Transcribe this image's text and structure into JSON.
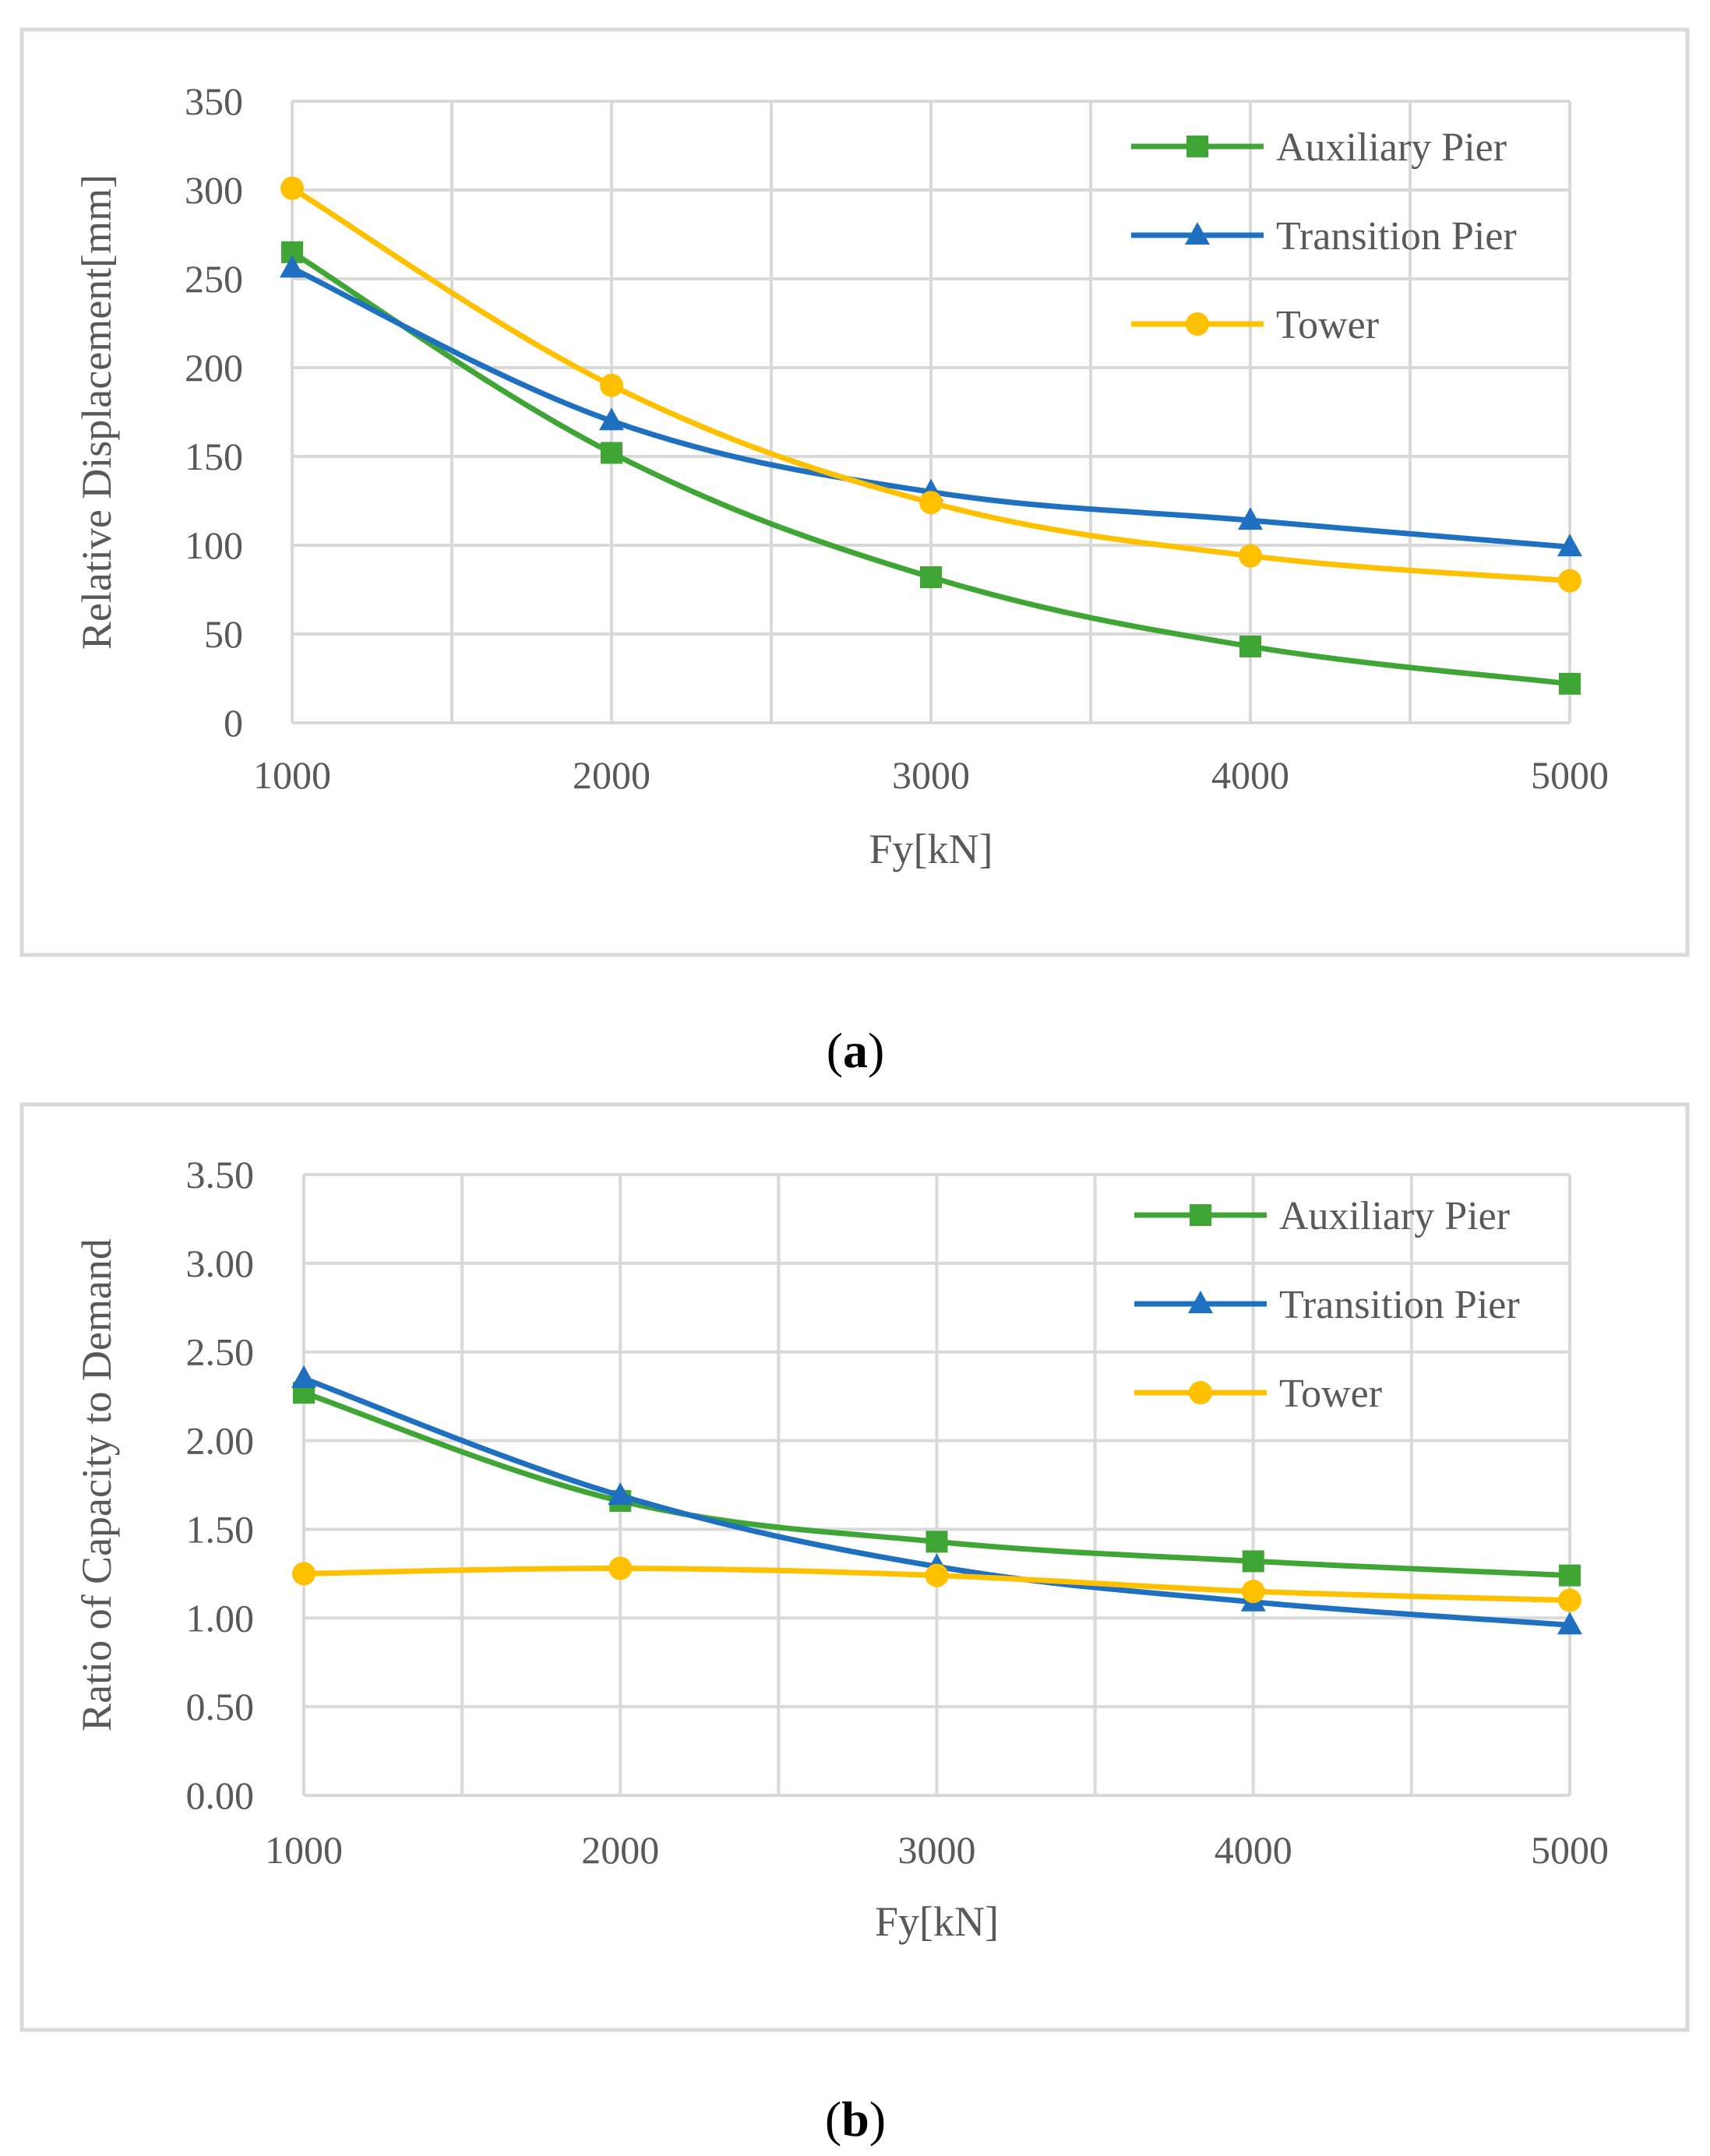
{
  "chart_data": [
    {
      "type": "line",
      "panel_label": "a",
      "x": [
        1000,
        2000,
        3000,
        4000,
        5000
      ],
      "xlabel": "Fy[kN]",
      "ylabel": "Relative Displacement[mm]",
      "xlim": [
        1000,
        5000
      ],
      "ylim": [
        0,
        350
      ],
      "x_ticks": [
        "1000",
        "2000",
        "3000",
        "4000",
        "5000"
      ],
      "y_ticks": [
        "0",
        "50",
        "100",
        "150",
        "200",
        "250",
        "300",
        "350"
      ],
      "grid": true,
      "legend_position": "top-right",
      "series": [
        {
          "name": "Auxiliary Pier",
          "marker": "square",
          "color": "#3fa535",
          "values": [
            265,
            152,
            82,
            43,
            22
          ]
        },
        {
          "name": "Transition Pier",
          "marker": "triangle",
          "color": "#1f70c1",
          "values": [
            256,
            170,
            130,
            114,
            99
          ]
        },
        {
          "name": "Tower",
          "marker": "circle",
          "color": "#ffc000",
          "values": [
            301,
            190,
            124,
            94,
            80
          ]
        }
      ]
    },
    {
      "type": "line",
      "panel_label": "b",
      "x": [
        1000,
        2000,
        3000,
        4000,
        5000
      ],
      "xlabel": "Fy[kN]",
      "ylabel": "Ratio of Capacity to Demand",
      "xlim": [
        1000,
        5000
      ],
      "ylim": [
        0,
        3.5
      ],
      "x_ticks": [
        "1000",
        "2000",
        "3000",
        "4000",
        "5000"
      ],
      "y_ticks": [
        "0.00",
        "0.50",
        "1.00",
        "1.50",
        "2.00",
        "2.50",
        "3.00",
        "3.50"
      ],
      "grid": true,
      "legend_position": "top-right",
      "series": [
        {
          "name": "Auxiliary Pier",
          "marker": "square",
          "color": "#3fa535",
          "values": [
            2.27,
            1.66,
            1.43,
            1.32,
            1.24
          ]
        },
        {
          "name": "Transition Pier",
          "marker": "triangle",
          "color": "#1f70c1",
          "values": [
            2.35,
            1.69,
            1.29,
            1.09,
            0.96
          ]
        },
        {
          "name": "Tower",
          "marker": "circle",
          "color": "#ffc000",
          "values": [
            1.25,
            1.28,
            1.24,
            1.15,
            1.1
          ]
        }
      ]
    }
  ]
}
